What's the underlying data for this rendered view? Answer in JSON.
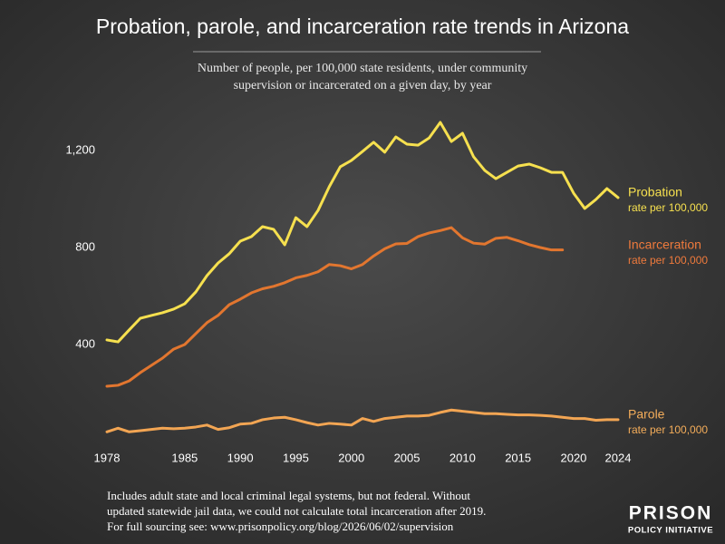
{
  "chart_data": {
    "type": "line",
    "title": "Probation, parole, and incarceration rate trends in Arizona",
    "subtitle": [
      "Number of people, per 100,000 state residents, under community",
      "supervision or incarcerated on a given day, by year"
    ],
    "x": [
      1978,
      1979,
      1980,
      1981,
      1982,
      1983,
      1984,
      1985,
      1986,
      1987,
      1988,
      1989,
      1990,
      1991,
      1992,
      1993,
      1994,
      1995,
      1996,
      1997,
      1998,
      1999,
      2000,
      2001,
      2002,
      2003,
      2004,
      2005,
      2006,
      2007,
      2008,
      2009,
      2010,
      2011,
      2012,
      2013,
      2014,
      2015,
      2016,
      2017,
      2018,
      2019,
      2020,
      2021,
      2022,
      2023,
      2024
    ],
    "xlim": [
      1978,
      2024
    ],
    "xticks": [
      1978,
      1985,
      1990,
      1995,
      2000,
      2005,
      2010,
      2015,
      2020,
      2024
    ],
    "ylim": [
      0,
      1400
    ],
    "yticks": [
      400,
      800,
      {
        "value": 1200,
        "label": "1,200"
      }
    ],
    "series": [
      {
        "name": "Probation",
        "rate_label": "rate per 100,000",
        "color": "#f6e04f",
        "label_color": "#f6e04f",
        "values": [
          419,
          411,
          460,
          508,
          520,
          531,
          546,
          568,
          617,
          684,
          736,
          774,
          826,
          845,
          886,
          875,
          811,
          923,
          886,
          953,
          1050,
          1133,
          1159,
          1196,
          1234,
          1193,
          1256,
          1226,
          1222,
          1252,
          1316,
          1237,
          1271,
          1174,
          1118,
          1084,
          1110,
          1136,
          1144,
          1129,
          1110,
          1110,
          1024,
          961,
          998,
          1043,
          1006
        ]
      },
      {
        "name": "Incarceration",
        "rate_label": "rate per 100,000",
        "color": "#e2762f",
        "label_color": "#ef7a3c",
        "values": [
          228,
          232,
          250,
          284,
          314,
          344,
          381,
          400,
          445,
          490,
          520,
          564,
          587,
          613,
          630,
          640,
          655,
          675,
          685,
          700,
          730,
          725,
          712,
          730,
          765,
          795,
          815,
          817,
          845,
          860,
          870,
          882,
          840,
          818,
          814,
          838,
          842,
          828,
          812,
          800,
          790,
          790,
          null,
          null,
          null,
          null,
          null
        ]
      },
      {
        "name": "Parole",
        "rate_label": "rate per 100,000",
        "color": "#f2a553",
        "label_color": "#f4ad5a",
        "values": [
          40,
          55,
          40,
          45,
          50,
          55,
          53,
          55,
          60,
          68,
          50,
          57,
          72,
          75,
          90,
          97,
          100,
          90,
          78,
          68,
          75,
          72,
          68,
          95,
          83,
          95,
          100,
          105,
          105,
          108,
          120,
          130,
          125,
          120,
          115,
          115,
          112,
          110,
          110,
          108,
          105,
          100,
          95,
          95,
          88,
          90,
          90
        ]
      }
    ],
    "notes": [
      "Includes adult state and local criminal legal systems, but not federal. Without",
      "updated statewide jail data, we could not calculate total incarceration after 2019.",
      "For full sourcing see: www.prisonpolicy.org/blog/2026/06/02/supervision"
    ]
  },
  "branding": {
    "line1": "PRISON",
    "line2": "POLICY INITIATIVE"
  }
}
